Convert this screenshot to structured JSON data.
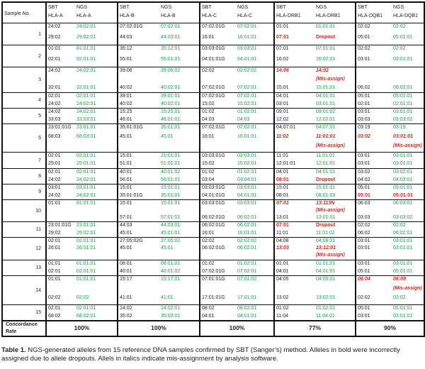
{
  "header": {
    "sample_no": "Sample No.",
    "groups": [
      {
        "sbt": "SBT",
        "ngs": "NGS",
        "sbt_gene": "HLA-A",
        "ngs_gene": "HLA-A"
      },
      {
        "sbt": "SBT",
        "ngs": "NGS",
        "sbt_gene": "HLA-B",
        "ngs_gene": "HLA-B"
      },
      {
        "sbt": "SBT",
        "ngs": "NGS",
        "sbt_gene": "HLA-C",
        "ngs_gene": "HLA-C"
      },
      {
        "sbt": "SBT",
        "ngs": "NGS",
        "sbt_gene": "HLA-DRB1",
        "ngs_gene": "HLA-DRB1"
      },
      {
        "sbt": "SBT",
        "ngs": "NGS",
        "sbt_gene": "HLA-DQB1",
        "ngs_gene": "HLA-DQB1"
      }
    ]
  },
  "samples": [
    {
      "no": "1",
      "h": 31,
      "lines": [
        [
          "24:02",
          "24:02:01",
          "07:02:01G",
          "07:02:01",
          "07:02:01G",
          "07:02:01",
          "01:01",
          "01:01:01",
          "02:02",
          "02:02"
        ],
        [
          "29:02",
          "29:02:01",
          "44:03",
          "44:03:01",
          "16:01",
          "16:01:01",
          {
            "t": "07:01",
            "c": "red"
          },
          {
            "t": "Dropout",
            "c": "red"
          },
          "05:01",
          "05:01:01"
        ]
      ]
    },
    {
      "no": "2",
      "h": 31,
      "lines": [
        [
          "01:01",
          "01:01:01",
          "35:12",
          "35:12:01",
          "03:03:01G",
          "03:03:01",
          "07:01",
          "07:01:01",
          "02:02",
          "02:02"
        ],
        [
          "02:01",
          "02:01:01",
          "55:01",
          "55:01:01",
          "04:01:01G",
          "04:01:01",
          "16:02",
          "16:02:01",
          "03:01",
          "03:01:01"
        ]
      ]
    },
    {
      "no": "3",
      "h": 36,
      "lines": [
        [
          "24:02",
          "24:02:01",
          "39:06",
          "39:06:02",
          "02:02",
          "02:02:02",
          {
            "t": "14:06",
            "c": "redi"
          },
          {
            "t": "14:02",
            "c": "redi"
          },
          "",
          ""
        ],
        [
          "",
          "",
          "",
          "",
          "",
          "",
          "",
          "",
          {
            "t": "",
            "c": ""
          },
          {
            "t": "",
            "c": ""
          }
        ],
        [
          "32:01",
          "32:01:01",
          "40:02",
          "40:02:01",
          "07:02:01G",
          "07:02:01",
          "15:01",
          "15:01:01",
          "06:02",
          "06:02:01"
        ]
      ],
      "extra": {
        "col": 7,
        "line": 1,
        "t": "(Mis-assign)",
        "c": "redi"
      }
    },
    {
      "no": "4",
      "h": 22,
      "lines": [
        [
          "02:01",
          "02:01:01",
          "39:01",
          "39:01:01",
          "07:02:01G",
          "07:02:01",
          "04:01",
          "04:01:01",
          "05:01",
          "05:01:01"
        ],
        [
          "24:02",
          "24:02:01",
          "40:02",
          "40:02:01",
          "15:02",
          "15:02:01",
          "03:01",
          "03:01:01",
          "02:01",
          "02:01:01"
        ]
      ]
    },
    {
      "no": "5",
      "h": 22,
      "lines": [
        [
          "24:02",
          "24:02:01",
          "15:25",
          "15:25:01",
          "01:02",
          "01:02:01",
          "09:01",
          "09:01:02",
          "03:01",
          "03:01:01"
        ],
        [
          "33:03",
          "33:03:01",
          "46:01",
          "46:01:01",
          "04:03",
          "04:03",
          "12:02",
          "12:02:01",
          "03:03",
          "03:03:02"
        ]
      ]
    },
    {
      "no": "6",
      "h": 40,
      "lines": [
        [
          "23:01:01G",
          "23:01:01",
          "35:01:01G",
          "35:01:01",
          "07:02:01G",
          "07:02:01",
          "04:07:01",
          "04:07:01",
          "03:19",
          "03:19"
        ],
        [
          "68:03",
          "68:03:01",
          "45:01",
          "45:01",
          "16:01",
          "16:01:01",
          {
            "t": "11:02",
            "c": "redi"
          },
          {
            "t": "11:01:01",
            "c": "redi"
          },
          {
            "t": "03:02",
            "c": "redi"
          },
          {
            "t": "03:01:01",
            "c": "redi"
          }
        ],
        [
          "",
          "",
          "",
          "",
          "",
          "",
          "",
          {
            "t": "(Mis-assign)",
            "c": "redi"
          },
          "",
          {
            "t": "(Mis-assign)",
            "c": "redi"
          }
        ]
      ]
    },
    {
      "no": "7",
      "h": 23,
      "lines": [
        [
          "02:01",
          "02:01:01",
          "15:01",
          "15:01:01",
          "03:03:01G",
          "03:03:01",
          "11:01",
          "11:01:01",
          "03:01",
          "03:01:01"
        ],
        [
          "25:01",
          "25:01:01",
          "51:01",
          "51:01:01",
          "15:02",
          "15:02:01",
          "12:01:01",
          "12:01:01",
          "03:01",
          "03:01:01"
        ]
      ]
    },
    {
      "no": "8",
      "h": 22,
      "lines": [
        [
          "02:01",
          "02:01:01",
          "40:01",
          "40:01:02",
          "01:02",
          "01:02:01",
          "04:01",
          "04:01:01",
          "03:02",
          "03:02:01"
        ],
        [
          "24:02",
          "24:02:01",
          "56:01",
          "56:01:01",
          "03:04",
          "03:04:01",
          {
            "t": "08:01",
            "c": "red"
          },
          {
            "t": "Dropout",
            "c": "red"
          },
          "04:02",
          "04:02:01"
        ]
      ]
    },
    {
      "no": "9",
      "h": 22,
      "lines": [
        [
          "03:01",
          "03:01:01",
          "15:01",
          "15:01:01",
          "03:03:01G",
          "03:03:01",
          "15:01",
          "15:01:01",
          "05:01",
          "05:01:01"
        ],
        [
          "24:02",
          "24:02:01",
          "35:01:01G",
          "35:01:01",
          "04:01:01G",
          "04:01:01",
          "08:01",
          "08:01:03",
          {
            "t": "05:01",
            "c": "red"
          },
          {
            "t": "05:01:01",
            "c": "red"
          }
        ]
      ]
    },
    {
      "no": "10",
      "h": 31,
      "lines": [
        [
          "01:01",
          "01:01:01",
          "15:01",
          "15:01:01",
          "03:03:01G",
          "03:03:01",
          {
            "t": "07:01",
            "c": "redi"
          },
          {
            "t": "13:113N",
            "c": "redi"
          },
          "06:03",
          "06:03:01"
        ],
        [
          "",
          "",
          "",
          "",
          "",
          "",
          "",
          {
            "t": "(Mis-assign)",
            "c": "redi"
          },
          "",
          ""
        ],
        [
          "",
          "",
          "57:01",
          "57:01:01",
          "06:02:01G",
          "06:02:01",
          "13:01",
          "13:01:01",
          "03:03",
          "03:03:02"
        ]
      ]
    },
    {
      "no": "11",
      "h": 22,
      "lines": [
        [
          "23:01:01G",
          "23:01:01",
          "44:03",
          "44:03:01",
          "06:02:01G",
          "06:02:01",
          {
            "t": "07:01",
            "c": "red"
          },
          {
            "t": "Dropout",
            "c": "red"
          },
          "02:02",
          "02:02"
        ],
        [
          "29:02",
          "29:02:01",
          "45:01",
          "45:01:01",
          "16:01",
          "16:01:01",
          "11:01",
          "11:01:02",
          "06:02",
          "06:02:01"
        ]
      ]
    },
    {
      "no": "12",
      "h": 32,
      "lines": [
        [
          "02:01",
          "02:01:01",
          "27:05:02G",
          "27:05:02",
          "02:02",
          "02:02:02",
          "04:08",
          "04:08:01",
          "03:01",
          "03:01:01"
        ],
        [
          "26:01",
          "26:01:01",
          "45:01",
          "45:01",
          "06:02:01G",
          "06:02:01",
          {
            "t": "13:03",
            "c": "redi"
          },
          {
            "t": "13:12:01",
            "c": "redi"
          },
          "03:01",
          "03:01:01"
        ],
        [
          "",
          "",
          "",
          "",
          "",
          "",
          "",
          {
            "t": "(Mis-assign)",
            "c": "redi"
          },
          "",
          ""
        ]
      ]
    },
    {
      "no": "13",
      "h": 22,
      "lines": [
        [
          "01:01",
          "01:01:01",
          "08:01",
          "08:01:01",
          "01:02",
          "01:02:01",
          "01:01",
          "01:01:01",
          "03:01",
          "03:01:01"
        ],
        [
          "02:01",
          "02:01:01",
          "40:01",
          "40:01:02",
          "07:02:01G",
          "07:02:01",
          "04:01",
          "04:01:01",
          "05:01",
          "05:01:01"
        ]
      ]
    },
    {
      "no": "14",
      "h": 41,
      "lines": [
        [
          "01:01",
          "01:01:01",
          "15:17",
          "15:17:01",
          "07:01:01G",
          "07:01:02",
          "04:05",
          "04:05:01",
          {
            "t": "06:04",
            "c": "redi"
          },
          {
            "t": "06:09",
            "c": "redi"
          }
        ],
        [
          "",
          "",
          "",
          "",
          "",
          "",
          "",
          "",
          "",
          {
            "t": "(Mis-assign)",
            "c": "redi"
          }
        ],
        [
          "02:02",
          "02:02",
          "41:01",
          "41:01",
          "17:01:01G",
          "17:01:01",
          "13:02",
          "13:02:01",
          "02:02",
          "02:02"
        ]
      ]
    },
    {
      "no": "15",
      "h": 22,
      "lines": [
        [
          "02:01",
          "02:01:01",
          "14:02",
          "14:02:01",
          "08:02",
          "08:02:01",
          "01:02",
          "01:02:01",
          "05:01",
          "05:01:01"
        ],
        [
          "68:02",
          "68:02:01",
          "35:02",
          "35:02:01",
          "04:01",
          "04:01:01",
          "11:04",
          "11:04:01",
          "03:01",
          "03:01:01"
        ]
      ]
    }
  ],
  "concordance": {
    "label_line1": "Concordance",
    "label_line2": "Rate",
    "values": [
      "100%",
      "100%",
      "100%",
      "77%",
      "90%"
    ]
  },
  "caption": {
    "bold": "Table 1.",
    "text": " NGS-generated alleles from 15 reference DNA samples confirmed by SBT (Sanger’s) method.  Alleles in bold were incorrectly assigned due to allele dropouts.  Allels in italics indicate mis-assignment by analysis software."
  },
  "colors": {
    "ngs": "#17a24a",
    "error": "#e3211a",
    "text": "#222222"
  }
}
